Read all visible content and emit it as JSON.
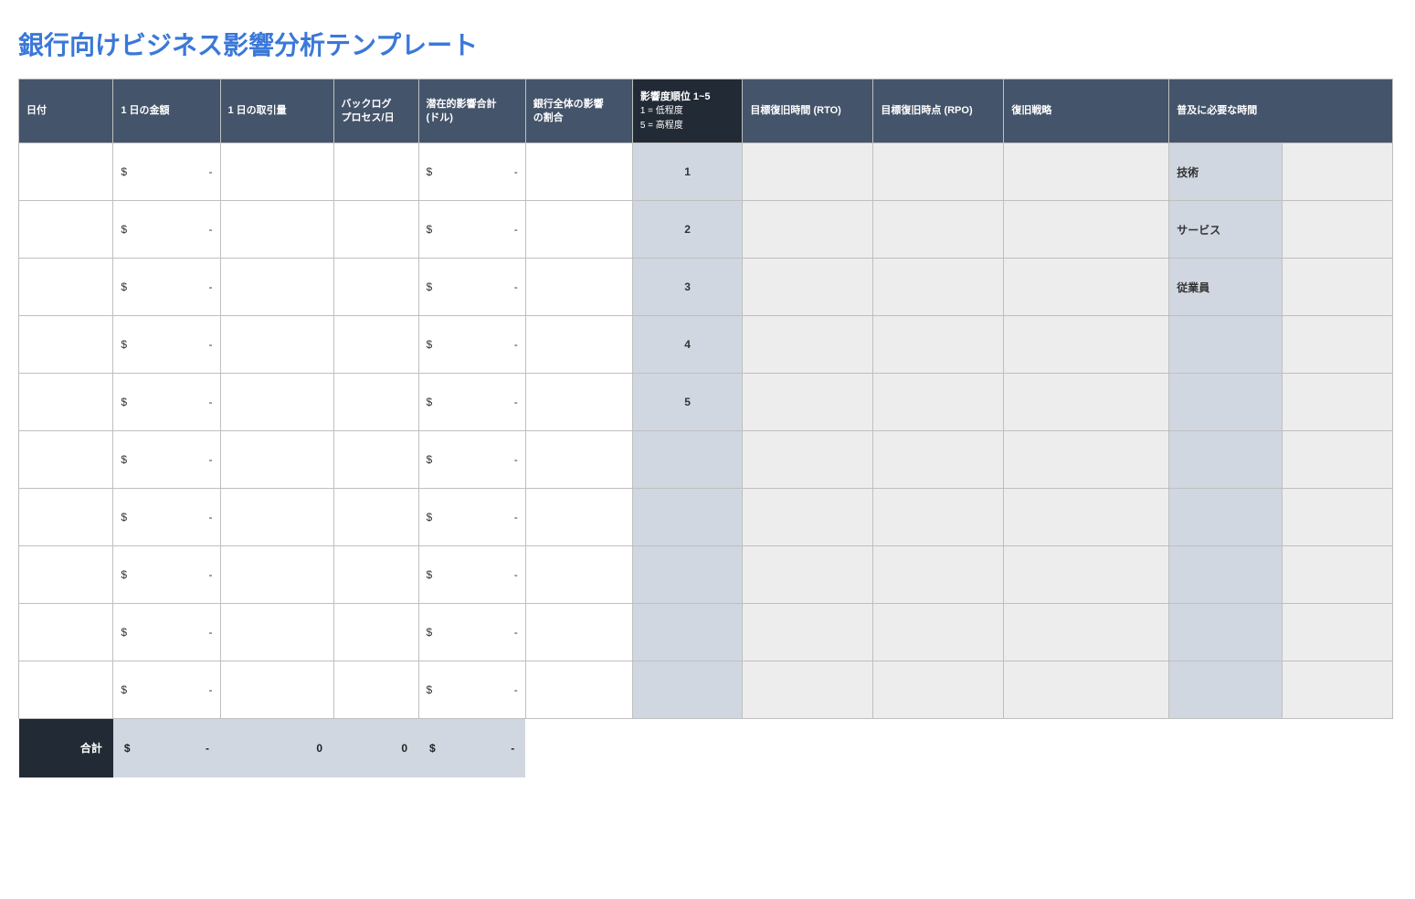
{
  "title": "銀行向けビジネス影響分析テンプレート",
  "colors": {
    "title": "#3b78d8",
    "header_bg": "#44546a",
    "header_dark_bg": "#222b35",
    "header_text": "#ffffff",
    "row_white": "#ffffff",
    "row_lightblue": "#d1d7e0",
    "row_lightgray": "#ededed",
    "border": "#bfbfbf"
  },
  "columns": [
    {
      "key": "date",
      "label": "日付"
    },
    {
      "key": "amount",
      "label": "1 日の金額"
    },
    {
      "key": "volume",
      "label": "1 日の取引量"
    },
    {
      "key": "backlog",
      "label": "バックログ\nプロセス/日"
    },
    {
      "key": "impact_sum",
      "label": "潜在的影響合計\n(ドル)"
    },
    {
      "key": "ratio",
      "label": "銀行全体の影響\nの割合"
    },
    {
      "key": "rank",
      "label": "影響度順位 1~5",
      "sub1": "1 = 低程度",
      "sub2": "5 = 高程度",
      "dark": true
    },
    {
      "key": "rto",
      "label": "目標復旧時間 (RTO)"
    },
    {
      "key": "rpo",
      "label": "目標復旧時点 (RPO)"
    },
    {
      "key": "strategy",
      "label": "復旧戦略"
    },
    {
      "key": "recov_time",
      "label": "普及に必要な時間",
      "colspan": 2
    }
  ],
  "currency_symbol": "$",
  "currency_dash": "-",
  "rows": [
    {
      "rank": "1",
      "category_label": "技術"
    },
    {
      "rank": "2",
      "category_label": "サービス"
    },
    {
      "rank": "3",
      "category_label": "従業員"
    },
    {
      "rank": "4",
      "category_label": ""
    },
    {
      "rank": "5",
      "category_label": ""
    },
    {
      "rank": "",
      "category_label": ""
    },
    {
      "rank": "",
      "category_label": ""
    },
    {
      "rank": "",
      "category_label": ""
    },
    {
      "rank": "",
      "category_label": ""
    },
    {
      "rank": "",
      "category_label": ""
    }
  ],
  "totals": {
    "label": "合計",
    "amount_sym": "$",
    "amount_val": "-",
    "volume": "0",
    "backlog": "0",
    "impact_sym": "$",
    "impact_val": "-"
  }
}
